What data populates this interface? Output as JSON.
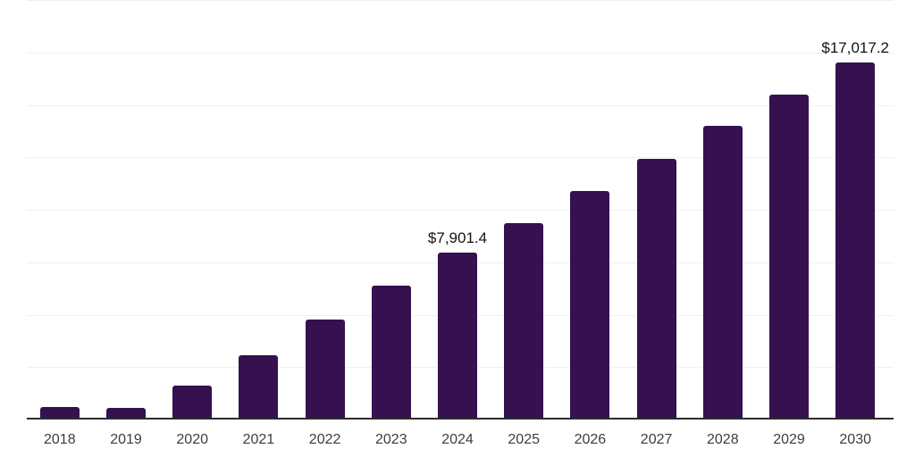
{
  "chart_data": {
    "type": "bar",
    "title": "",
    "xlabel": "",
    "ylabel": "",
    "categories": [
      "2018",
      "2019",
      "2020",
      "2021",
      "2022",
      "2023",
      "2024",
      "2025",
      "2026",
      "2027",
      "2028",
      "2029",
      "2030"
    ],
    "values": [
      530,
      490,
      1540,
      2990,
      4700,
      6310,
      7901.4,
      9320,
      10870,
      12400,
      13960,
      15480,
      17017.2
    ],
    "data_labels": {
      "2024": "$7,901.4",
      "2030": "$17,017.2"
    },
    "ylim": [
      0,
      20080
    ],
    "grid": "horizontal",
    "gridline_count": 8,
    "legend": false,
    "colors": {
      "bar": "#351150",
      "axis": "#2b2b2b",
      "gridline": "#f0f0f0",
      "tick_label": "#3d3d3d",
      "data_label": "#131313"
    }
  }
}
